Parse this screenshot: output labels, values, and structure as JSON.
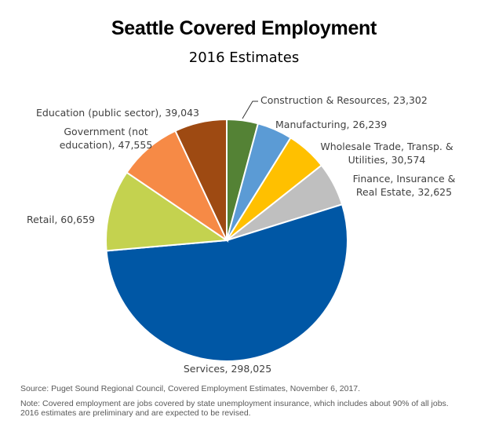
{
  "chart_data": {
    "type": "pie",
    "title": "Seattle Covered Employment",
    "subtitle": "2016 Estimates",
    "categories": [
      "Construction & Resources",
      "Manufacturing",
      "Wholesale Trade, Transp. & Utilities",
      "Finance, Insurance & Real Estate",
      "Services",
      "Retail",
      "Government (not education)",
      "Education (public sector)"
    ],
    "values": [
      23302,
      26239,
      30574,
      32625,
      298025,
      60659,
      47555,
      39043
    ],
    "value_labels": [
      "23,302",
      "26,239",
      "30,574",
      "32,625",
      "298,025",
      "60,659",
      "47,555",
      "39,043"
    ],
    "colors": [
      "#548235",
      "#5b9bd5",
      "#ffc000",
      "#bfbfbf",
      "#0057a5",
      "#c4d24f",
      "#f68a46",
      "#9e4a12"
    ],
    "start": "top",
    "direction": "clockwise",
    "legend": "none"
  },
  "source": "Source: Puget Sound Regional Council, Covered Employment Estimates, November 6, 2017.",
  "note": "Note: Covered employment are jobs covered by state unemployment insurance, which includes about 90% of all jobs.",
  "note2": "2016 estimates are preliminary and are expected to be revised."
}
